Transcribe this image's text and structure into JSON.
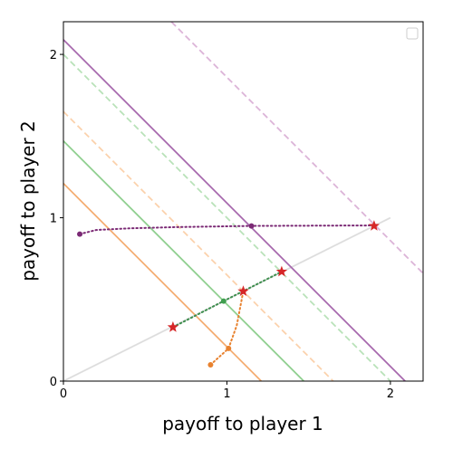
{
  "chart_data": {
    "type": "line",
    "xlabel": "payoff to player 1",
    "ylabel": "payoff to player 2",
    "xlim": [
      0,
      2.2
    ],
    "ylim": [
      0,
      2.2
    ],
    "xticks": [
      0,
      1,
      2
    ],
    "yticks": [
      0,
      1,
      2
    ],
    "legend": "upper right",
    "series": [
      {
        "color": "#dddddd",
        "style": "solid",
        "x": [
          0,
          2
        ],
        "values": [
          0,
          1
        ]
      },
      {
        "color": "#a86aae",
        "style": "solid",
        "x": [
          0,
          2.09
        ],
        "values": [
          2.09,
          0
        ]
      },
      {
        "color": "#dcb4d8",
        "style": "dashed",
        "x": [
          0.66,
          2.2
        ],
        "values": [
          2.2,
          0.66
        ]
      },
      {
        "color": "#b9e2b9",
        "style": "dashed",
        "x": [
          0,
          2
        ],
        "values": [
          2,
          0
        ]
      },
      {
        "color": "#fbd2ad",
        "style": "dashed",
        "x": [
          0,
          1.65
        ],
        "values": [
          1.65,
          0
        ]
      },
      {
        "color": "#8fcf8f",
        "style": "solid",
        "x": [
          0,
          1.47
        ],
        "values": [
          1.47,
          0
        ]
      },
      {
        "color": "#f4ad72",
        "style": "solid",
        "x": [
          0,
          1.21
        ],
        "values": [
          1.21,
          0
        ]
      },
      {
        "color": "#7b2a75",
        "style": "dotted",
        "x": [
          0.1,
          0.2,
          0.4,
          0.7,
          1.15,
          1.9
        ],
        "values": [
          0.9,
          0.925,
          0.935,
          0.943,
          0.95,
          0.953
        ]
      },
      {
        "color": "#3f8f4f",
        "style": "dotted",
        "x": [
          0.67,
          0.98,
          1.335
        ],
        "values": [
          0.33,
          0.49,
          0.67
        ]
      },
      {
        "color": "#e8822f",
        "style": "dotted",
        "x": [
          0.9,
          1.01,
          1.06,
          1.1
        ],
        "values": [
          0.1,
          0.2,
          0.34,
          0.55
        ]
      },
      {
        "color": "#7b2a75",
        "style": "none",
        "marker": "dot",
        "x": [
          0.1,
          1.15
        ],
        "values": [
          0.9,
          0.95
        ]
      },
      {
        "color": "#3f9f4f",
        "style": "none",
        "marker": "dot",
        "x": [
          0.98
        ],
        "values": [
          0.49
        ]
      },
      {
        "color": "#e8822f",
        "style": "none",
        "marker": "dot",
        "x": [
          0.9,
          1.01
        ],
        "values": [
          0.1,
          0.2
        ]
      },
      {
        "color": "#d62728",
        "style": "none",
        "marker": "star",
        "x": [
          0.67,
          1.1,
          1.335,
          1.9
        ],
        "values": [
          0.33,
          0.55,
          0.67,
          0.95
        ]
      }
    ]
  }
}
